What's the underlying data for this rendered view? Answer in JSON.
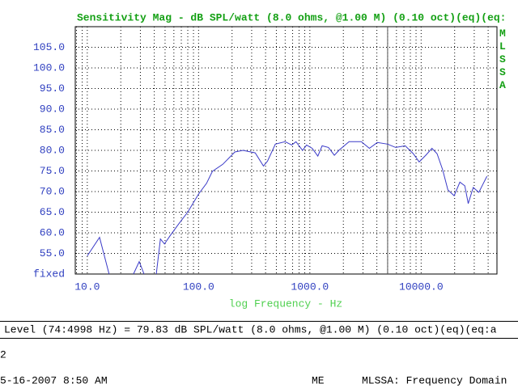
{
  "chart_data": {
    "type": "line",
    "title": "Sensitivity Mag - dB SPL/watt (8.0 ohms, @1.00 M) (0.10 oct)(eq)(eq:",
    "side_label": "MLSSA",
    "x_label": "log Frequency - Hz",
    "log_x": true,
    "grid": true,
    "xlim": [
      7.8,
      48000
    ],
    "ylim": [
      50,
      110
    ],
    "xticks": [
      {
        "value": 10,
        "label": "10.0"
      },
      {
        "value": 100,
        "label": "100.0"
      },
      {
        "value": 1000,
        "label": "1000.0"
      },
      {
        "value": 10000,
        "label": "10000.0"
      }
    ],
    "xminorticks": [
      8,
      9,
      20,
      30,
      40,
      50,
      60,
      70,
      80,
      90,
      200,
      300,
      400,
      500,
      600,
      700,
      800,
      900,
      2000,
      3000,
      4000,
      5000,
      6000,
      7000,
      8000,
      9000,
      20000,
      30000,
      40000
    ],
    "yticks": [
      {
        "value": 50,
        "label": "fixed"
      },
      {
        "value": 55,
        "label": "55.0"
      },
      {
        "value": 60,
        "label": "60.0"
      },
      {
        "value": 65,
        "label": "65.0"
      },
      {
        "value": 70,
        "label": "70.0"
      },
      {
        "value": 75,
        "label": "75.0"
      },
      {
        "value": 80,
        "label": "80.0"
      },
      {
        "value": 85,
        "label": "85.0"
      },
      {
        "value": 90,
        "label": "90.0"
      },
      {
        "value": 95,
        "label": "95.0"
      },
      {
        "value": 100,
        "label": "100.0"
      },
      {
        "value": 105,
        "label": "105.0"
      }
    ],
    "cursor": 4998,
    "x": [
      10,
      12.9,
      15.7,
      20,
      26,
      29.3,
      32.4,
      37,
      41.7,
      45.4,
      49.4,
      55.5,
      65.6,
      80.2,
      100,
      118,
      133,
      165,
      212,
      251,
      323,
      383,
      416,
      490,
      600,
      688,
      750,
      860,
      935,
      1050,
      1180,
      1290,
      1470,
      1660,
      1840,
      2250,
      2900,
      3430,
      4030,
      5000,
      5900,
      7200,
      8500,
      9600,
      11000,
      12500,
      13900,
      15600,
      17400,
      19800,
      22300,
      24700,
      26500,
      29400,
      33000,
      35900,
      39000
    ],
    "series": [
      {
        "color": "#3a3ac8",
        "values": [
          54.4,
          58.9,
          50,
          null,
          50,
          53,
          50,
          null,
          50,
          58.5,
          57.3,
          59.3,
          62,
          65.1,
          69.4,
          72,
          74.9,
          76.6,
          79.6,
          80,
          79.4,
          76.2,
          77.4,
          81.5,
          82.1,
          81.3,
          82.1,
          80,
          81.3,
          80.5,
          78.6,
          81.1,
          80.7,
          78.8,
          80.1,
          82.1,
          82.1,
          80.5,
          81.9,
          81.5,
          80.7,
          81.1,
          79.2,
          77.2,
          78.8,
          80.5,
          79.2,
          75.3,
          70.4,
          69,
          72.3,
          71.4,
          67.1,
          71,
          69.8,
          71.8,
          73.7
        ]
      }
    ]
  },
  "status_line": "Level (74:4998 Hz) = 79.83 dB SPL/watt (8.0 ohms, @1.00 M) (0.10 oct)(eq)(eq:a",
  "prompt": "2",
  "footer": {
    "datetime": "5-16-2007 8:50 AM",
    "user": "ME",
    "mode": "MLSSA: Frequency Domain"
  }
}
